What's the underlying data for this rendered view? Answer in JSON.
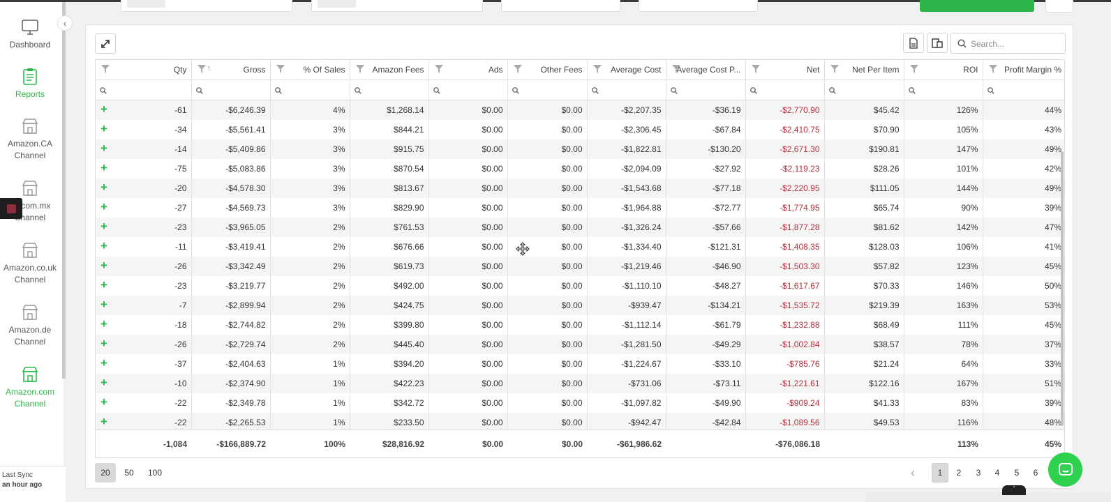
{
  "sidebar": {
    "collapse_icon": "chevron-left-icon",
    "items": [
      {
        "label": "Dashboard",
        "icon": "monitor-icon"
      },
      {
        "label": "Reports",
        "icon": "clipboard-icon"
      },
      {
        "label": "Amazon.CA Channel",
        "icon": "store-icon"
      },
      {
        "label": "on.com.mx Channel",
        "icon": "store-icon"
      },
      {
        "label": "Amazon.co.uk Channel",
        "icon": "store-icon"
      },
      {
        "label": "Amazon.de Channel",
        "icon": "store-icon"
      },
      {
        "label": "Amazon.com Channel",
        "icon": "store-icon"
      }
    ],
    "last_sync_label": "Last Sync",
    "last_sync_value": "an hour ago"
  },
  "toolbar": {
    "search_placeholder": "Search..."
  },
  "table": {
    "columns": [
      "Qty",
      "Gross",
      "% Of Sales",
      "Amazon Fees",
      "Ads",
      "Other Fees",
      "Average Cost",
      "Average Cost P...",
      "Net",
      "Net Per Item",
      "ROI",
      "Profit Margin %"
    ],
    "rows": [
      [
        "-61",
        "-$6,246.39",
        "4%",
        "$1,268.14",
        "$0.00",
        "$0.00",
        "-$2,207.35",
        "-$36.19",
        "-$2,770.90",
        "$45.42",
        "126%",
        "44%"
      ],
      [
        "-34",
        "-$5,561.41",
        "3%",
        "$844.21",
        "$0.00",
        "$0.00",
        "-$2,306.45",
        "-$67.84",
        "-$2,410.75",
        "$70.90",
        "105%",
        "43%"
      ],
      [
        "-14",
        "-$5,409.86",
        "3%",
        "$915.75",
        "$0.00",
        "$0.00",
        "-$1,822.81",
        "-$130.20",
        "-$2,671.30",
        "$190.81",
        "147%",
        "49%"
      ],
      [
        "-75",
        "-$5,083.86",
        "3%",
        "$870.54",
        "$0.00",
        "$0.00",
        "-$2,094.09",
        "-$27.92",
        "-$2,119.23",
        "$28.26",
        "101%",
        "42%"
      ],
      [
        "-20",
        "-$4,578.30",
        "3%",
        "$813.67",
        "$0.00",
        "$0.00",
        "-$1,543.68",
        "-$77.18",
        "-$2,220.95",
        "$111.05",
        "144%",
        "49%"
      ],
      [
        "-27",
        "-$4,569.73",
        "3%",
        "$829.90",
        "$0.00",
        "$0.00",
        "-$1,964.88",
        "-$72.77",
        "-$1,774.95",
        "$65.74",
        "90%",
        "39%"
      ],
      [
        "-23",
        "-$3,965.05",
        "2%",
        "$761.53",
        "$0.00",
        "$0.00",
        "-$1,326.24",
        "-$57.66",
        "-$1,877.28",
        "$81.62",
        "142%",
        "47%"
      ],
      [
        "-11",
        "-$3,419.41",
        "2%",
        "$676.66",
        "$0.00",
        "$0.00",
        "-$1,334.40",
        "-$121.31",
        "-$1,408.35",
        "$128.03",
        "106%",
        "41%"
      ],
      [
        "-26",
        "-$3,342.49",
        "2%",
        "$619.73",
        "$0.00",
        "$0.00",
        "-$1,219.46",
        "-$46.90",
        "-$1,503.30",
        "$57.82",
        "123%",
        "45%"
      ],
      [
        "-23",
        "-$3,219.77",
        "2%",
        "$492.00",
        "$0.00",
        "$0.00",
        "-$1,110.10",
        "-$48.27",
        "-$1,617.67",
        "$70.33",
        "146%",
        "50%"
      ],
      [
        "-7",
        "-$2,899.94",
        "2%",
        "$424.75",
        "$0.00",
        "$0.00",
        "-$939.47",
        "-$134.21",
        "-$1,535.72",
        "$219.39",
        "163%",
        "53%"
      ],
      [
        "-18",
        "-$2,744.82",
        "2%",
        "$399.80",
        "$0.00",
        "$0.00",
        "-$1,112.14",
        "-$61.79",
        "-$1,232.88",
        "$68.49",
        "111%",
        "45%"
      ],
      [
        "-26",
        "-$2,729.74",
        "2%",
        "$445.40",
        "$0.00",
        "$0.00",
        "-$1,281.50",
        "-$49.29",
        "-$1,002.84",
        "$38.57",
        "78%",
        "37%"
      ],
      [
        "-37",
        "-$2,404.63",
        "1%",
        "$394.20",
        "$0.00",
        "$0.00",
        "-$1,224.67",
        "-$33.10",
        "-$785.76",
        "$21.24",
        "64%",
        "33%"
      ],
      [
        "-10",
        "-$2,374.90",
        "1%",
        "$422.23",
        "$0.00",
        "$0.00",
        "-$731.06",
        "-$73.11",
        "-$1,221.61",
        "$122.16",
        "167%",
        "51%"
      ],
      [
        "-22",
        "-$2,349.78",
        "1%",
        "$342.72",
        "$0.00",
        "$0.00",
        "-$1,097.82",
        "-$49.90",
        "-$909.24",
        "$41.33",
        "83%",
        "39%"
      ],
      [
        "-22",
        "-$2,265.53",
        "1%",
        "$233.50",
        "$0.00",
        "$0.00",
        "-$942.47",
        "-$42.84",
        "-$1,089.56",
        "$49.53",
        "116%",
        "48%"
      ]
    ],
    "totals": [
      "-1,084",
      "-$166,889.72",
      "100%",
      "$28,816.92",
      "$0.00",
      "$0.00",
      "-$61,986.62",
      "",
      "-$76,086.18",
      "",
      "113%",
      "45%"
    ],
    "negative_color": "#b0303c",
    "accent_color": "#2db84b"
  },
  "pager": {
    "page_sizes": [
      "20",
      "50",
      "100"
    ],
    "selected_size": "20",
    "pages": [
      "1",
      "2",
      "3",
      "4",
      "5",
      "6"
    ],
    "current_page": "1"
  }
}
